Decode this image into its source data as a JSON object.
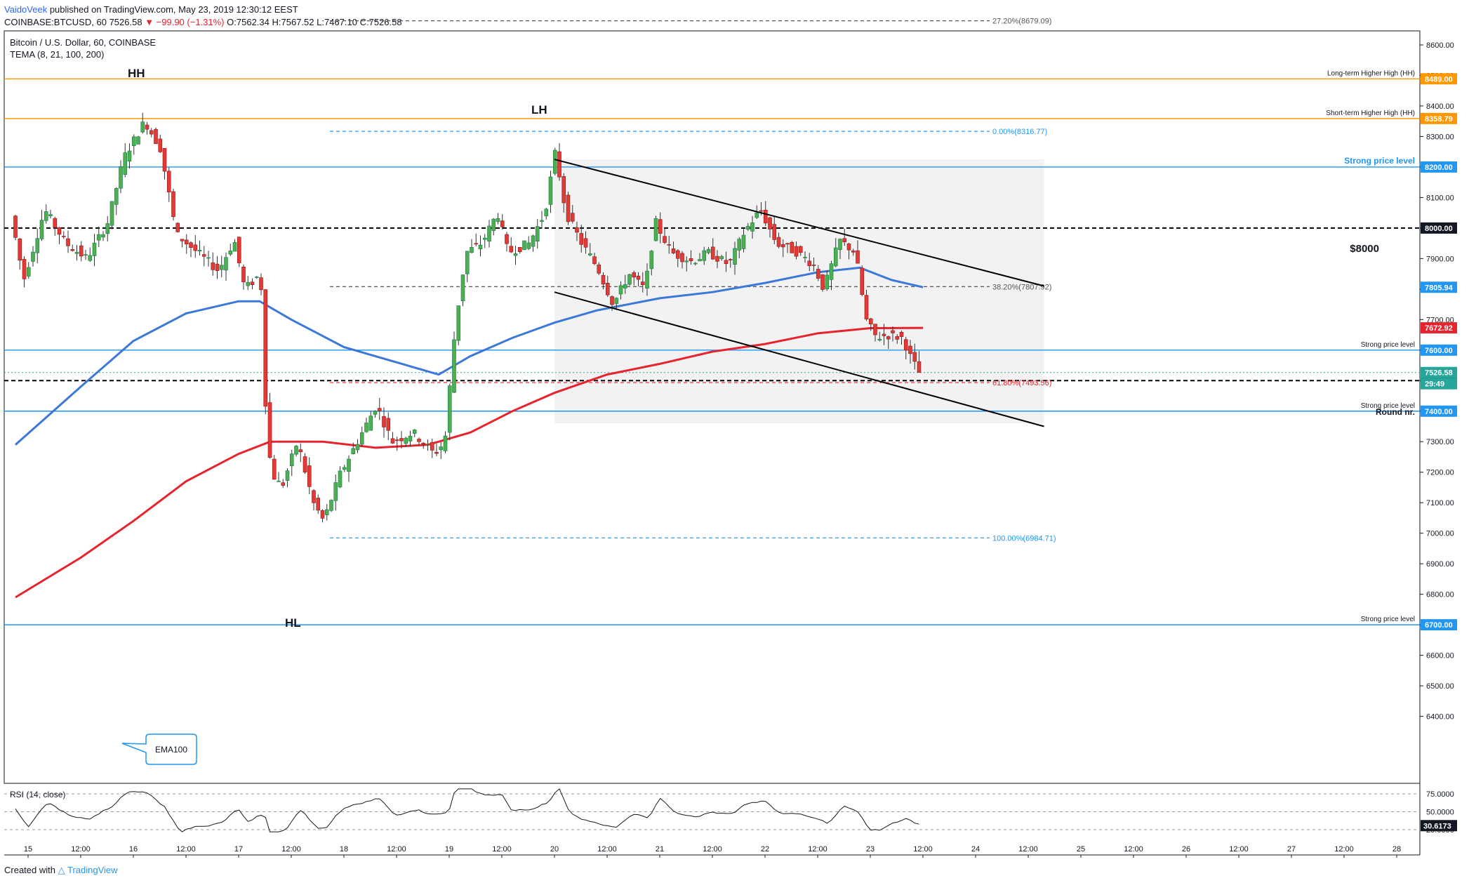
{
  "header": {
    "author": "VaidoVeek",
    "published": "published on TradingView.com, May 23, 2019 12:30:12 EEST",
    "symbol_line": "COINBASE:BTCUSD, 60",
    "last": "7526.58",
    "change": "▼ −99.90 (−1.31%)",
    "o_label": "O:",
    "o": "7562.34",
    "h_label": "H:",
    "h": "7567.52",
    "l_label": "L:",
    "l": "7467.10",
    "c_label": "C:",
    "c": "7526.58"
  },
  "legend": {
    "title": "Bitcoin / U.S. Dollar, 60, COINBASE",
    "indicator": "TEMA (8, 21, 100, 200)"
  },
  "annotations": {
    "hh": "HH",
    "lh": "LH",
    "hl": "HL",
    "ema_callout": "EMA100",
    "round_nr": "Round nr.",
    "eight_thousand": "$8000"
  },
  "rsi": {
    "title": "RSI (14, close)",
    "ticks": [
      "75.0000",
      "50.0000",
      "25.0000"
    ],
    "value": "30.6173"
  },
  "footer": {
    "created": "Created with",
    "brand": "TradingView"
  },
  "colors": {
    "bull": "#26a69a",
    "bear": "#ef5350",
    "ema100": "#3b78d8",
    "ema200": "#e8232d",
    "hline_blue": "#2196f3",
    "hline_orange": "#ff9800",
    "channel": "#000000"
  },
  "chart_data": {
    "type": "candlestick",
    "title": "Bitcoin / U.S. Dollar, 60, COINBASE",
    "price_axis": {
      "ticks": [
        6400,
        6500,
        6600,
        6700,
        6800,
        6900,
        7000,
        7100,
        7200,
        7300,
        7400,
        7500,
        7600,
        7700,
        7800,
        7900,
        8000,
        8100,
        8200,
        8300,
        8400,
        8500,
        8600
      ],
      "range": [
        6340,
        8700
      ]
    },
    "time_axis": {
      "labels": [
        "15",
        "12:00",
        "16",
        "12:00",
        "17",
        "12:00",
        "18",
        "12:00",
        "19",
        "12:00",
        "20",
        "12:00",
        "21",
        "12:00",
        "22",
        "12:00",
        "23",
        "12:00",
        "24",
        "12:00",
        "25",
        "12:00",
        "26",
        "12:00",
        "27",
        "12:00",
        "28"
      ],
      "last_bar_label": "12:00"
    },
    "horizontal_levels": [
      {
        "price": 8489.0,
        "label": "Long-term Higher High (HH)",
        "tag": "8489.00",
        "color": "#ff9800"
      },
      {
        "price": 8358.79,
        "label": "Short-term Higher High (HH)",
        "tag": "8358.79",
        "color": "#ff9800"
      },
      {
        "price": 8200.0,
        "label": "Strong price level",
        "tag": "8200.00",
        "color": "#2196f3"
      },
      {
        "price": 8000.0,
        "label": "$8000",
        "tag": "8000.00",
        "color": "#000000",
        "dashed": true
      },
      {
        "price": 7600.0,
        "label": "Strong price level",
        "tag": "7600.00",
        "color": "#2196f3"
      },
      {
        "price": 7500.0,
        "label": "Round nr.",
        "tag": "7500.00",
        "color": "#000000",
        "dashed": true
      },
      {
        "price": 7400.0,
        "label": "Strong price level",
        "tag": "7400.00",
        "color": "#2196f3"
      },
      {
        "price": 6700.0,
        "label": "Strong price level",
        "tag": "6700.00",
        "color": "#2196f3"
      }
    ],
    "fibonacci": [
      {
        "level": "27.20%",
        "price": 8679.09,
        "label": "27.20%(8679.09)"
      },
      {
        "level": "0.00%",
        "price": 8316.77,
        "label": "0.00%(8316.77)"
      },
      {
        "level": "38.20%",
        "price": 7807.92,
        "label": "38.20%(7807.92)"
      },
      {
        "level": "61.80%",
        "price": 7493.56,
        "label": "61.80%(7493.56)"
      },
      {
        "level": "100.00%",
        "price": 6984.71,
        "label": "100.00%(6984.71)"
      }
    ],
    "price_tags": [
      {
        "price": 7805.94,
        "label": "7805.94",
        "kind": "ema100"
      },
      {
        "price": 7672.92,
        "label": "7672.92",
        "kind": "ema200"
      },
      {
        "price": 7526.58,
        "label": "7526.58",
        "kind": "last"
      },
      {
        "price": 7526.58,
        "label": "29:49",
        "kind": "countdown"
      }
    ],
    "channel": {
      "upper": [
        {
          "day": 20.0,
          "price": 8225
        },
        {
          "day": 24.65,
          "price": 7810
        }
      ],
      "lower": [
        {
          "day": 20.0,
          "price": 7790
        },
        {
          "day": 24.65,
          "price": 7350
        }
      ],
      "box": {
        "day_start": 20.0,
        "day_end": 24.65,
        "price_top": 8225,
        "price_bottom": 7360
      }
    },
    "ema100": [
      {
        "day": 14.88,
        "price": 7290
      },
      {
        "day": 15.5,
        "price": 7480
      },
      {
        "day": 16.0,
        "price": 7630
      },
      {
        "day": 16.5,
        "price": 7720
      },
      {
        "day": 17.0,
        "price": 7760
      },
      {
        "day": 17.2,
        "price": 7760
      },
      {
        "day": 17.5,
        "price": 7700
      },
      {
        "day": 18.0,
        "price": 7610
      },
      {
        "day": 18.5,
        "price": 7560
      },
      {
        "day": 18.9,
        "price": 7520
      },
      {
        "day": 19.2,
        "price": 7580
      },
      {
        "day": 19.6,
        "price": 7640
      },
      {
        "day": 20.0,
        "price": 7690
      },
      {
        "day": 20.4,
        "price": 7730
      },
      {
        "day": 21.0,
        "price": 7770
      },
      {
        "day": 21.5,
        "price": 7790
      },
      {
        "day": 22.0,
        "price": 7820
      },
      {
        "day": 22.5,
        "price": 7855
      },
      {
        "day": 22.9,
        "price": 7870
      },
      {
        "day": 23.2,
        "price": 7830
      },
      {
        "day": 23.5,
        "price": 7806
      }
    ],
    "ema200": [
      {
        "day": 14.88,
        "price": 6790
      },
      {
        "day": 15.5,
        "price": 6920
      },
      {
        "day": 16.0,
        "price": 7040
      },
      {
        "day": 16.5,
        "price": 7170
      },
      {
        "day": 17.0,
        "price": 7260
      },
      {
        "day": 17.3,
        "price": 7300
      },
      {
        "day": 17.8,
        "price": 7300
      },
      {
        "day": 18.3,
        "price": 7280
      },
      {
        "day": 18.8,
        "price": 7290
      },
      {
        "day": 19.2,
        "price": 7330
      },
      {
        "day": 19.6,
        "price": 7400
      },
      {
        "day": 20.0,
        "price": 7460
      },
      {
        "day": 20.5,
        "price": 7520
      },
      {
        "day": 21.0,
        "price": 7555
      },
      {
        "day": 21.5,
        "price": 7595
      },
      {
        "day": 22.0,
        "price": 7620
      },
      {
        "day": 22.5,
        "price": 7655
      },
      {
        "day": 23.0,
        "price": 7672
      },
      {
        "day": 23.5,
        "price": 7673
      }
    ],
    "candle_anchors": [
      {
        "day": 14.88,
        "price": 8040
      },
      {
        "day": 15.0,
        "price": 7830
      },
      {
        "day": 15.2,
        "price": 8060
      },
      {
        "day": 15.4,
        "price": 7950
      },
      {
        "day": 15.6,
        "price": 7900
      },
      {
        "day": 15.8,
        "price": 8020
      },
      {
        "day": 15.95,
        "price": 8230
      },
      {
        "day": 16.15,
        "price": 8350
      },
      {
        "day": 16.3,
        "price": 8260
      },
      {
        "day": 16.45,
        "price": 7980
      },
      {
        "day": 16.65,
        "price": 7920
      },
      {
        "day": 16.85,
        "price": 7860
      },
      {
        "day": 17.0,
        "price": 7960
      },
      {
        "day": 17.1,
        "price": 7800
      },
      {
        "day": 17.25,
        "price": 7850
      },
      {
        "day": 17.3,
        "price": 7400
      },
      {
        "day": 17.35,
        "price": 7200
      },
      {
        "day": 17.45,
        "price": 7150
      },
      {
        "day": 17.6,
        "price": 7300
      },
      {
        "day": 17.75,
        "price": 7100
      },
      {
        "day": 17.85,
        "price": 7040
      },
      {
        "day": 18.0,
        "price": 7190
      },
      {
        "day": 18.2,
        "price": 7320
      },
      {
        "day": 18.35,
        "price": 7420
      },
      {
        "day": 18.5,
        "price": 7300
      },
      {
        "day": 18.7,
        "price": 7330
      },
      {
        "day": 18.9,
        "price": 7260
      },
      {
        "day": 19.0,
        "price": 7300
      },
      {
        "day": 19.1,
        "price": 7680
      },
      {
        "day": 19.2,
        "price": 7920
      },
      {
        "day": 19.35,
        "price": 7950
      },
      {
        "day": 19.5,
        "price": 8050
      },
      {
        "day": 19.6,
        "price": 7920
      },
      {
        "day": 19.8,
        "price": 7950
      },
      {
        "day": 19.95,
        "price": 8050
      },
      {
        "day": 20.05,
        "price": 8250
      },
      {
        "day": 20.15,
        "price": 8050
      },
      {
        "day": 20.3,
        "price": 7950
      },
      {
        "day": 20.45,
        "price": 7870
      },
      {
        "day": 20.6,
        "price": 7750
      },
      {
        "day": 20.75,
        "price": 7850
      },
      {
        "day": 20.9,
        "price": 7800
      },
      {
        "day": 21.0,
        "price": 8020
      },
      {
        "day": 21.15,
        "price": 7920
      },
      {
        "day": 21.35,
        "price": 7890
      },
      {
        "day": 21.5,
        "price": 7920
      },
      {
        "day": 21.7,
        "price": 7880
      },
      {
        "day": 21.85,
        "price": 7990
      },
      {
        "day": 22.0,
        "price": 8060
      },
      {
        "day": 22.15,
        "price": 7950
      },
      {
        "day": 22.35,
        "price": 7920
      },
      {
        "day": 22.5,
        "price": 7880
      },
      {
        "day": 22.6,
        "price": 7800
      },
      {
        "day": 22.75,
        "price": 7960
      },
      {
        "day": 22.9,
        "price": 7920
      },
      {
        "day": 23.0,
        "price": 7700
      },
      {
        "day": 23.1,
        "price": 7640
      },
      {
        "day": 23.2,
        "price": 7650
      },
      {
        "day": 23.35,
        "price": 7640
      },
      {
        "day": 23.42,
        "price": 7580
      },
      {
        "day": 23.5,
        "price": 7527
      }
    ]
  }
}
